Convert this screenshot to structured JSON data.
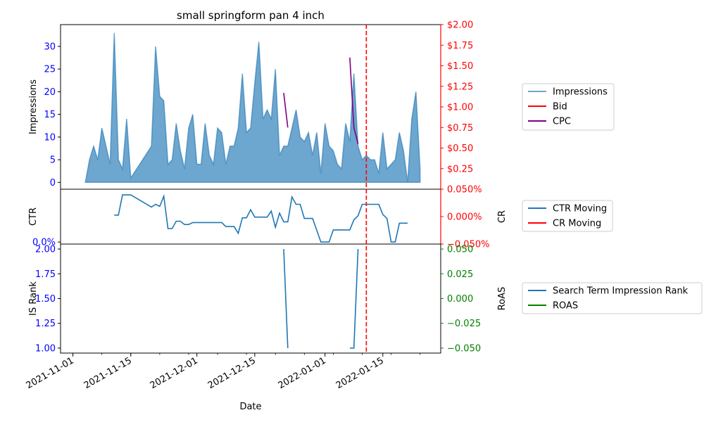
{
  "chart_data": [
    {
      "panel": "impressions",
      "type": "area",
      "title": "small springform pan 4 inch",
      "ylabel": "Impressions",
      "y2label": "",
      "ylim": [
        -1.5,
        34.8
      ],
      "y2lim": [
        0.0,
        2.0
      ],
      "yticks": [
        "0",
        "5",
        "10",
        "15",
        "20",
        "25",
        "30"
      ],
      "y2ticks": [
        "$0.25",
        "$0.50",
        "$0.75",
        "$1.00",
        "$1.25",
        "$1.50",
        "$1.75",
        "$2.00"
      ],
      "legend_placement": "right",
      "series": [
        {
          "name": "Impressions",
          "color": "#1f77b4",
          "axis": "left",
          "points": [
            [
              "2021-11-04",
              0
            ],
            [
              "2021-11-05",
              5
            ],
            [
              "2021-11-06",
              8
            ],
            [
              "2021-11-07",
              5
            ],
            [
              "2021-11-08",
              12
            ],
            [
              "2021-11-09",
              8
            ],
            [
              "2021-11-10",
              4
            ],
            [
              "2021-11-11",
              33
            ],
            [
              "2021-11-12",
              5
            ],
            [
              "2021-11-13",
              3
            ],
            [
              "2021-11-14",
              14
            ],
            [
              "2021-11-15",
              1
            ],
            [
              "2021-11-20",
              8
            ],
            [
              "2021-11-21",
              30
            ],
            [
              "2021-11-22",
              19
            ],
            [
              "2021-11-23",
              18
            ],
            [
              "2021-11-24",
              4
            ],
            [
              "2021-11-25",
              5
            ],
            [
              "2021-11-26",
              13
            ],
            [
              "2021-11-27",
              7
            ],
            [
              "2021-11-28",
              3
            ],
            [
              "2021-11-29",
              12
            ],
            [
              "2021-11-30",
              15
            ],
            [
              "2021-12-01",
              4
            ],
            [
              "2021-12-02",
              4
            ],
            [
              "2021-12-03",
              13
            ],
            [
              "2021-12-04",
              6
            ],
            [
              "2021-12-05",
              4
            ],
            [
              "2021-12-06",
              12
            ],
            [
              "2021-12-07",
              11
            ],
            [
              "2021-12-08",
              4
            ],
            [
              "2021-12-09",
              8
            ],
            [
              "2021-12-10",
              8
            ],
            [
              "2021-12-11",
              12
            ],
            [
              "2021-12-12",
              24
            ],
            [
              "2021-12-13",
              11
            ],
            [
              "2021-12-14",
              12
            ],
            [
              "2021-12-15",
              22
            ],
            [
              "2021-12-16",
              31
            ],
            [
              "2021-12-17",
              14
            ],
            [
              "2021-12-18",
              16
            ],
            [
              "2021-12-19",
              14
            ],
            [
              "2021-12-20",
              25
            ],
            [
              "2021-12-21",
              6
            ],
            [
              "2021-12-22",
              8
            ],
            [
              "2021-12-23",
              8
            ],
            [
              "2021-12-24",
              12
            ],
            [
              "2021-12-25",
              16
            ],
            [
              "2021-12-26",
              10
            ],
            [
              "2021-12-27",
              9
            ],
            [
              "2021-12-28",
              11
            ],
            [
              "2021-12-29",
              6
            ],
            [
              "2021-12-30",
              11
            ],
            [
              "2021-12-31",
              2
            ],
            [
              "2022-01-01",
              13
            ],
            [
              "2022-01-02",
              8
            ],
            [
              "2022-01-03",
              7
            ],
            [
              "2022-01-04",
              4
            ],
            [
              "2022-01-05",
              3
            ],
            [
              "2022-01-06",
              13
            ],
            [
              "2022-01-07",
              9
            ],
            [
              "2022-01-08",
              24
            ],
            [
              "2022-01-09",
              8
            ],
            [
              "2022-01-10",
              5
            ],
            [
              "2022-01-11",
              6
            ],
            [
              "2022-01-12",
              5
            ],
            [
              "2022-01-13",
              5
            ],
            [
              "2022-01-14",
              2
            ],
            [
              "2022-01-15",
              11
            ],
            [
              "2022-01-16",
              3
            ],
            [
              "2022-01-17",
              4
            ],
            [
              "2022-01-18",
              5
            ],
            [
              "2022-01-19",
              11
            ],
            [
              "2022-01-20",
              7
            ],
            [
              "2022-01-21",
              0
            ],
            [
              "2022-01-22",
              14
            ],
            [
              "2022-01-23",
              20
            ],
            [
              "2022-01-24",
              3
            ]
          ]
        },
        {
          "name": "Bid",
          "color": "#ff0000",
          "axis": "right",
          "points": [
            [
              "2022-01-11",
              0.7
            ],
            [
              "2022-01-24",
              0.7
            ]
          ]
        },
        {
          "name": "CPC",
          "color": "#800080",
          "axis": "right",
          "points": [
            [
              "2021-12-22",
              1.17
            ],
            [
              "2021-12-23",
              0.75
            ],
            [
              "2022-01-07",
              1.6
            ],
            [
              "2022-01-08",
              0.75
            ],
            [
              "2022-01-09",
              0.55
            ]
          ]
        }
      ]
    },
    {
      "panel": "ctr",
      "type": "line",
      "ylabel": "CTR",
      "y2label": "CR",
      "ylim": [
        -0.003,
        0.0785
      ],
      "y2lim": [
        -0.05,
        0.05
      ],
      "yticks": [
        "0.0%",
        "5.0%"
      ],
      "y2ticks": [
        "−0.050%",
        "0.000%",
        "0.050%"
      ],
      "legend_placement": "right",
      "series": [
        {
          "name": "CTR Moving",
          "color": "#1f77b4",
          "axis": "left",
          "points": [
            [
              "2021-11-11",
              0.04
            ],
            [
              "2021-11-12",
              0.04
            ],
            [
              "2021-11-13",
              0.07
            ],
            [
              "2021-11-15",
              0.07
            ],
            [
              "2021-11-20",
              0.052
            ],
            [
              "2021-11-21",
              0.056
            ],
            [
              "2021-11-22",
              0.053
            ],
            [
              "2021-11-23",
              0.068
            ],
            [
              "2021-11-24",
              0.02
            ],
            [
              "2021-11-25",
              0.02
            ],
            [
              "2021-11-26",
              0.031
            ],
            [
              "2021-11-27",
              0.031
            ],
            [
              "2021-11-28",
              0.026
            ],
            [
              "2021-11-29",
              0.026
            ],
            [
              "2021-11-30",
              0.029
            ],
            [
              "2021-12-07",
              0.029
            ],
            [
              "2021-12-08",
              0.023
            ],
            [
              "2021-12-10",
              0.023
            ],
            [
              "2021-12-11",
              0.013
            ],
            [
              "2021-12-12",
              0.036
            ],
            [
              "2021-12-13",
              0.036
            ],
            [
              "2021-12-14",
              0.048
            ],
            [
              "2021-12-15",
              0.037
            ],
            [
              "2021-12-18",
              0.037
            ],
            [
              "2021-12-19",
              0.046
            ],
            [
              "2021-12-20",
              0.022
            ],
            [
              "2021-12-21",
              0.043
            ],
            [
              "2021-12-22",
              0.03
            ],
            [
              "2021-12-23",
              0.03
            ],
            [
              "2021-12-24",
              0.067
            ],
            [
              "2021-12-25",
              0.056
            ],
            [
              "2021-12-26",
              0.056
            ],
            [
              "2021-12-27",
              0.035
            ],
            [
              "2021-12-29",
              0.035
            ],
            [
              "2021-12-31",
              0.0
            ],
            [
              "2022-01-02",
              0.0
            ],
            [
              "2022-01-03",
              0.018
            ],
            [
              "2022-01-07",
              0.018
            ],
            [
              "2022-01-08",
              0.033
            ],
            [
              "2022-01-09",
              0.039
            ],
            [
              "2022-01-10",
              0.056
            ],
            [
              "2022-01-14",
              0.056
            ],
            [
              "2022-01-15",
              0.041
            ],
            [
              "2022-01-16",
              0.035
            ],
            [
              "2022-01-17",
              0.0
            ],
            [
              "2022-01-18",
              0.0
            ],
            [
              "2022-01-19",
              0.028
            ],
            [
              "2022-01-21",
              0.028
            ]
          ]
        },
        {
          "name": "CR Moving",
          "color": "#ff0000",
          "axis": "right",
          "points": []
        }
      ]
    },
    {
      "panel": "rank",
      "type": "line",
      "ylabel": "IS Rank",
      "y2label": "RoAS",
      "xlabel": "Date",
      "ylim": [
        0.95,
        2.05
      ],
      "y2lim": [
        -0.055,
        0.055
      ],
      "yticks": [
        "1.00",
        "1.25",
        "1.50",
        "1.75",
        "2.00"
      ],
      "y2ticks": [
        "−0.050",
        "−0.025",
        "0.000",
        "0.025",
        "0.050"
      ],
      "xticks": [
        "2021-11-01",
        "2021-11-15",
        "2021-12-01",
        "2021-12-15",
        "2022-01-01",
        "2022-01-15"
      ],
      "legend_placement": "right",
      "series": [
        {
          "name": "Search Term Impression Rank",
          "color": "#1f77b4",
          "axis": "left",
          "points": [
            [
              "2021-12-22",
              2.0
            ],
            [
              "2021-12-23",
              1.0
            ],
            [
              "2022-01-07",
              1.0
            ],
            [
              "2022-01-08",
              1.0
            ],
            [
              "2022-01-09",
              2.0
            ]
          ]
        },
        {
          "name": "ROAS",
          "color": "#008000",
          "axis": "right",
          "points": []
        }
      ]
    }
  ],
  "marker_date": "2022-01-11",
  "colors": {
    "left_tick": "#0000ff",
    "right_tick_top": "#ff0000",
    "right_tick_bottom": "#008000",
    "marker": "#ff0000"
  }
}
